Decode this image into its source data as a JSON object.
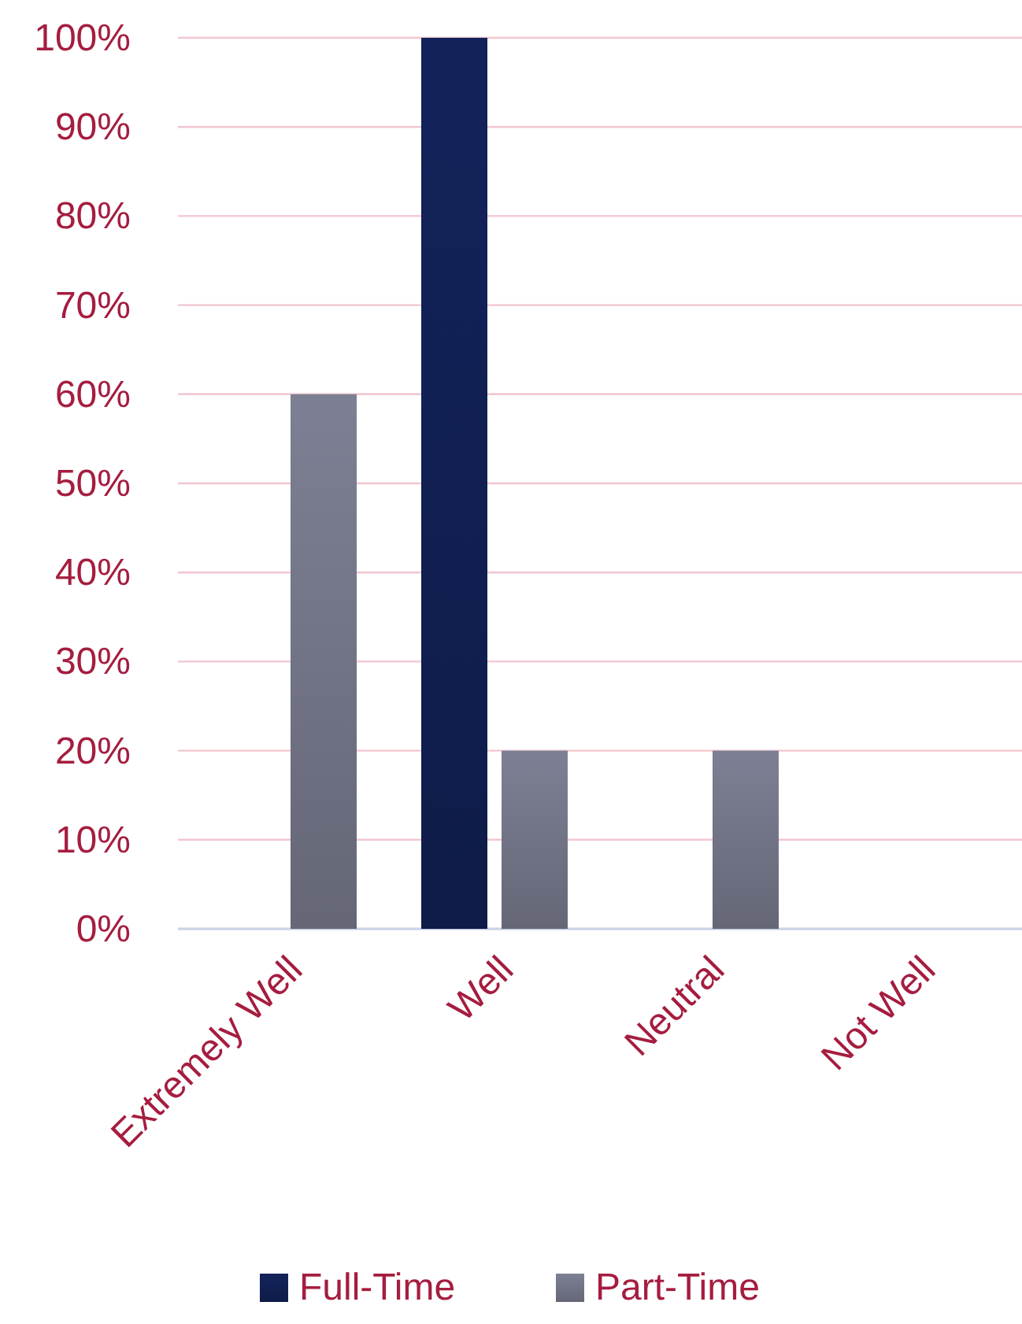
{
  "chart_data": {
    "type": "bar",
    "categories": [
      "Extremely Well",
      "Well",
      "Neutral",
      "Not Well"
    ],
    "series": [
      {
        "name": "Full-Time",
        "color": "#13235a",
        "values": [
          0,
          100,
          0,
          0
        ]
      },
      {
        "name": "Part-Time",
        "color": "#7d8094",
        "values": [
          60,
          20,
          20,
          0
        ]
      }
    ],
    "ylim": [
      0,
      100
    ],
    "yticks": [
      {
        "value": 0,
        "label": "0%"
      },
      {
        "value": 10,
        "label": "10%"
      },
      {
        "value": 20,
        "label": "20%"
      },
      {
        "value": 30,
        "label": "30%"
      },
      {
        "value": 40,
        "label": "40%"
      },
      {
        "value": 50,
        "label": "50%"
      },
      {
        "value": 60,
        "label": "60%"
      },
      {
        "value": 70,
        "label": "70%"
      },
      {
        "value": 80,
        "label": "80%"
      },
      {
        "value": 90,
        "label": "90%"
      },
      {
        "value": 100,
        "label": "100%"
      }
    ],
    "grid": "y",
    "legend": "bottom"
  }
}
